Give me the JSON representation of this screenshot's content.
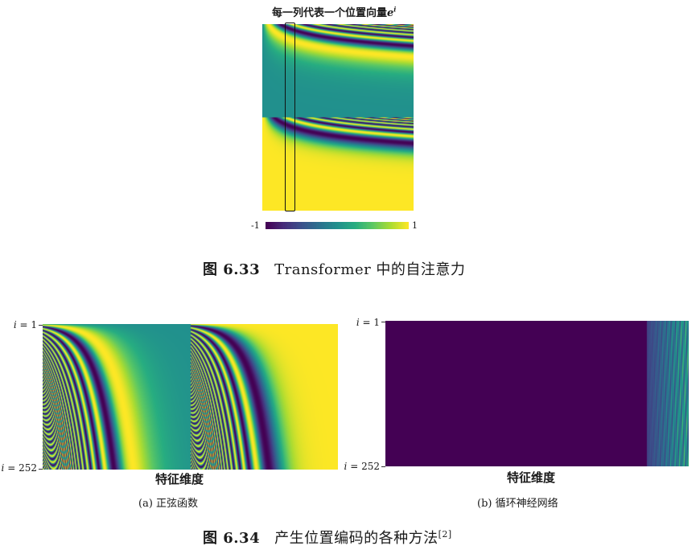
{
  "top_figure": {
    "title_text": "每一列代表一个位置向量",
    "title_math_base": "e",
    "title_math_sup": "i",
    "colorbar_min": "-1",
    "colorbar_max": "1",
    "caption_label": "图 6.33",
    "caption_text": "Transformer 中的自注意力"
  },
  "bottom_figure": {
    "caption_label": "图 6.34",
    "caption_text": "产生位置编码的各种方法",
    "caption_ref": "[2]",
    "panel_a": {
      "y_top": "= 1",
      "y_bottom": "= 252",
      "y_var": "i",
      "x_axis": "特征维度",
      "subcaption": "(a) 正弦函数"
    },
    "panel_b": {
      "y_top": "= 1",
      "y_bottom": "= 252",
      "y_var": "i",
      "x_axis": "特征维度",
      "subcaption": "(b) 循环神经网络"
    }
  },
  "colors": {
    "viridis_low": "#440154",
    "viridis_mid": "#21918c",
    "viridis_high": "#fde725"
  }
}
